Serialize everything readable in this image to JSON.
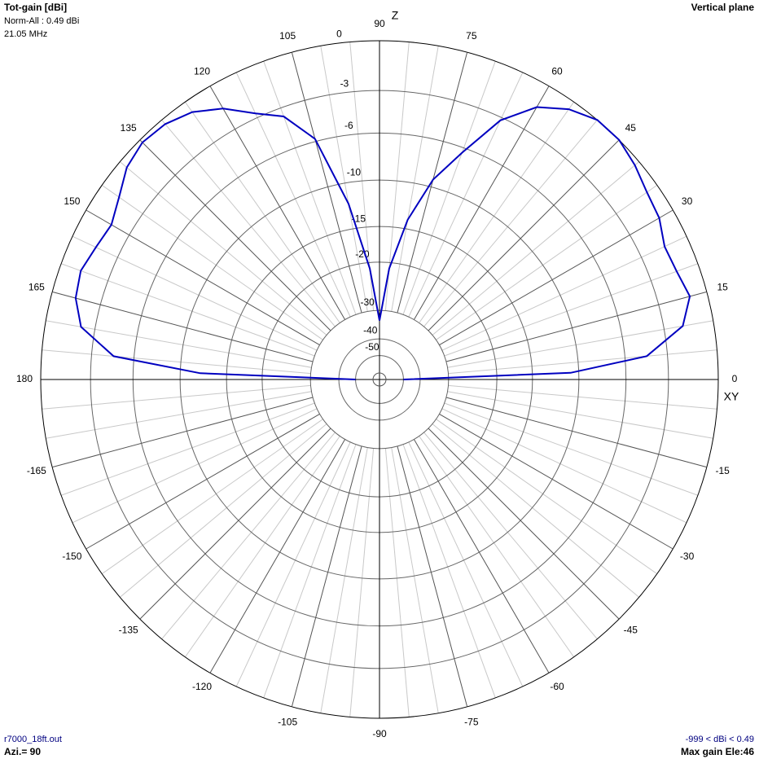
{
  "header": {
    "title": "Tot-gain [dBi]",
    "norm": "Norm-All : 0.49 dBi",
    "frequency": "21.05 MHz",
    "plane": "Vertical plane",
    "z_label": "Z",
    "xy_label": "XY"
  },
  "footer": {
    "file": "r7000_18ft.out",
    "azimuth": "Azi.= 90",
    "range": "-999 < dBi < 0.49",
    "max_gain": "Max gain Ele:46"
  },
  "chart_data": {
    "type": "polar",
    "angle_ticks": [
      0,
      15,
      30,
      45,
      60,
      75,
      90,
      105,
      120,
      135,
      150,
      165,
      180,
      -165,
      -150,
      -135,
      -120,
      -105,
      -90,
      -75,
      -60,
      -45,
      -30,
      -15
    ],
    "rticks": [
      0,
      -3,
      -6,
      -10,
      -15,
      -20,
      -30,
      -40,
      -50
    ],
    "x": [
      0,
      2,
      5,
      10,
      15,
      20,
      25,
      30,
      35,
      40,
      45,
      50,
      55,
      60,
      65,
      70,
      75,
      80,
      85,
      90,
      95,
      100,
      105,
      110,
      115,
      120,
      125,
      130,
      135,
      140,
      145,
      150,
      155,
      160,
      165,
      170,
      175,
      178,
      180
    ],
    "series": [
      {
        "color": "#0000c0",
        "values": [
          -50,
          -10.8,
          -4.4,
          -1.8,
          -1.0,
          -1.3,
          -1.4,
          -0.9,
          -0.7,
          -0.3,
          0,
          0,
          -0.5,
          -1.4,
          -3.2,
          -6.4,
          -9.3,
          -13.9,
          -21,
          -33,
          -21,
          -12.1,
          -5.8,
          -3.6,
          -2.7,
          -1.5,
          -0.7,
          -0.3,
          -0.2,
          -0.5,
          -1.2,
          -1.7,
          -1.5,
          -1.2,
          -1.4,
          -2.1,
          -4.5,
          -12,
          -50
        ]
      }
    ]
  }
}
